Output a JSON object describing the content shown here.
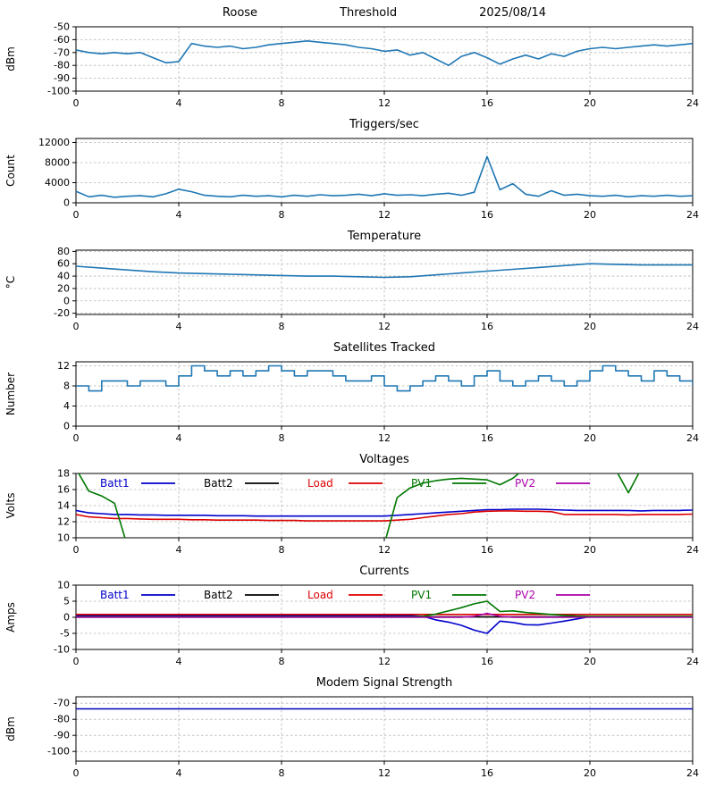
{
  "page_title": "Roose Threshold 2025/08/14",
  "chart_data": [
    {
      "id": "signal-threshold",
      "type": "line",
      "title_parts": [
        "Roose",
        "Threshold",
        "2025/08/14"
      ],
      "ylabel": "dBm",
      "ylim": [
        -100,
        -50
      ],
      "yticks": [
        -100,
        -90,
        -80,
        -70,
        -60,
        -50
      ],
      "xlim": [
        0,
        24
      ],
      "xticks": [
        0,
        4,
        8,
        12,
        16,
        20,
        24
      ],
      "grid": true,
      "series": [
        {
          "name": "signal-dbm",
          "color": "#1f77b4",
          "values": [
            -68,
            -70,
            -71,
            -70,
            -71,
            -70,
            -74,
            -78,
            -77,
            -63,
            -65,
            -66,
            -65,
            -67,
            -66,
            -64,
            -63,
            -62,
            -61,
            -62,
            -63,
            -64,
            -66,
            -67,
            -69,
            -68,
            -72,
            -70,
            -75,
            -80,
            -73,
            -70,
            -74,
            -79,
            -75,
            -72,
            -75,
            -71,
            -73,
            -69,
            -67,
            -66,
            -67,
            -66,
            -65,
            -64,
            -65,
            -64,
            -63
          ]
        }
      ]
    },
    {
      "id": "triggers",
      "type": "line",
      "title": "Triggers/sec",
      "ylabel": "Count",
      "ylim": [
        0,
        12800
      ],
      "yticks": [
        0,
        4000,
        8000,
        12000
      ],
      "xlim": [
        0,
        24
      ],
      "xticks": [
        0,
        4,
        8,
        12,
        16,
        20,
        24
      ],
      "grid": true,
      "series": [
        {
          "name": "trigger-rate",
          "color": "#1f77b4",
          "values": [
            2300,
            1200,
            1500,
            1100,
            1300,
            1400,
            1200,
            1800,
            2700,
            2200,
            1500,
            1300,
            1200,
            1500,
            1300,
            1400,
            1200,
            1500,
            1300,
            1600,
            1400,
            1500,
            1700,
            1400,
            1800,
            1500,
            1600,
            1400,
            1700,
            1900,
            1500,
            2100,
            9200,
            2600,
            3800,
            1700,
            1300,
            2400,
            1500,
            1700,
            1400,
            1300,
            1500,
            1200,
            1400,
            1300,
            1500,
            1300,
            1400
          ]
        }
      ]
    },
    {
      "id": "temperature",
      "type": "line",
      "title": "Temperature",
      "ylabel": "°C",
      "ylim": [
        -22,
        82
      ],
      "yticks": [
        -20,
        0,
        20,
        40,
        60,
        80
      ],
      "xlim": [
        0,
        24
      ],
      "xticks": [
        0,
        4,
        8,
        12,
        16,
        20,
        24
      ],
      "grid": true,
      "series": [
        {
          "name": "temperature-c",
          "color": "#1f77b4",
          "values": [
            56,
            53,
            50,
            47,
            45,
            44,
            43,
            42,
            41,
            40,
            40,
            39,
            38,
            39,
            42,
            45,
            48,
            51,
            54,
            57,
            60,
            59,
            58,
            58,
            58
          ]
        }
      ]
    },
    {
      "id": "satellites",
      "type": "line",
      "title": "Satellites Tracked",
      "ylabel": "Number",
      "ylim": [
        0,
        12.8
      ],
      "yticks": [
        0,
        4,
        8,
        12
      ],
      "xlim": [
        0,
        24
      ],
      "xticks": [
        0,
        4,
        8,
        12,
        16,
        20,
        24
      ],
      "grid": true,
      "series": [
        {
          "name": "satellites-tracked",
          "color": "#1f77b4",
          "step": true,
          "values": [
            8,
            7,
            9,
            9,
            8,
            9,
            9,
            8,
            10,
            12,
            11,
            10,
            11,
            10,
            11,
            12,
            11,
            10,
            11,
            11,
            10,
            9,
            9,
            10,
            8,
            7,
            8,
            9,
            10,
            9,
            8,
            10,
            11,
            9,
            8,
            9,
            10,
            9,
            8,
            9,
            11,
            12,
            11,
            10,
            9,
            11,
            10,
            9,
            8
          ]
        }
      ]
    },
    {
      "id": "voltages",
      "type": "line",
      "title": "Voltages",
      "ylabel": "Volts",
      "ylim": [
        10,
        18
      ],
      "yticks": [
        10,
        12,
        14,
        16,
        18
      ],
      "xlim": [
        0,
        24
      ],
      "xticks": [
        0,
        4,
        8,
        12,
        16,
        20,
        24
      ],
      "grid": true,
      "legend": [
        {
          "label": "Batt1",
          "color": "#0000cc"
        },
        {
          "label": "Batt2",
          "color": "#000000"
        },
        {
          "label": "Load",
          "color": "#dd0000"
        },
        {
          "label": "PV1",
          "color": "#007700"
        },
        {
          "label": "PV2",
          "color": "#aa00aa"
        }
      ],
      "series": [
        {
          "name": "batt1-volts",
          "color": "#0000cc",
          "values": [
            13.4,
            13.1,
            13.0,
            12.9,
            12.9,
            12.85,
            12.85,
            12.8,
            12.8,
            12.8,
            12.8,
            12.75,
            12.75,
            12.75,
            12.7,
            12.7,
            12.7,
            12.7,
            12.7,
            12.7,
            12.7,
            12.7,
            12.7,
            12.7,
            12.7,
            12.8,
            12.9,
            13.0,
            13.1,
            13.2,
            13.3,
            13.4,
            13.5,
            13.5,
            13.55,
            13.55,
            13.55,
            13.5,
            13.45,
            13.4,
            13.4,
            13.4,
            13.4,
            13.4,
            13.35,
            13.4,
            13.4,
            13.4,
            13.45
          ]
        },
        {
          "name": "batt2-volts",
          "color": "#000000",
          "values": []
        },
        {
          "name": "load-volts",
          "color": "#dd0000",
          "values": [
            12.9,
            12.6,
            12.5,
            12.4,
            12.4,
            12.35,
            12.3,
            12.3,
            12.3,
            12.25,
            12.25,
            12.2,
            12.2,
            12.2,
            12.2,
            12.15,
            12.15,
            12.15,
            12.1,
            12.1,
            12.1,
            12.1,
            12.1,
            12.1,
            12.1,
            12.2,
            12.3,
            12.5,
            12.7,
            12.9,
            13.0,
            13.2,
            13.3,
            13.35,
            13.35,
            13.3,
            13.3,
            13.25,
            12.9,
            12.9,
            12.9,
            12.9,
            12.9,
            12.85,
            12.9,
            12.9,
            12.9,
            12.9,
            12.95
          ]
        },
        {
          "name": "pv1-volts",
          "color": "#007700",
          "values": [
            18.6,
            15.8,
            15.2,
            14.3,
            9.0,
            null,
            null,
            null,
            null,
            null,
            null,
            null,
            null,
            null,
            null,
            null,
            null,
            null,
            null,
            null,
            null,
            null,
            null,
            null,
            9.2,
            15.0,
            16.2,
            16.8,
            17.1,
            17.3,
            17.4,
            17.3,
            17.2,
            16.6,
            17.4,
            18.7,
            18.9,
            18.9,
            18.9,
            18.9,
            18.9,
            18.9,
            18.5,
            15.6,
            18.6,
            18.9,
            18.9,
            18.9,
            18.9
          ]
        },
        {
          "name": "pv2-volts",
          "color": "#aa00aa",
          "values": []
        }
      ]
    },
    {
      "id": "currents",
      "type": "line",
      "title": "Currents",
      "ylabel": "Amps",
      "ylim": [
        -10,
        10
      ],
      "yticks": [
        -10,
        -5,
        0,
        5,
        10
      ],
      "xlim": [
        0,
        24
      ],
      "xticks": [
        0,
        4,
        8,
        12,
        16,
        20,
        24
      ],
      "grid": true,
      "legend": [
        {
          "label": "Batt1",
          "color": "#0000cc"
        },
        {
          "label": "Batt2",
          "color": "#000000"
        },
        {
          "label": "Load",
          "color": "#dd0000"
        },
        {
          "label": "PV1",
          "color": "#007700"
        },
        {
          "label": "PV2",
          "color": "#aa00aa"
        }
      ],
      "series": [
        {
          "name": "batt1-amps",
          "color": "#0000cc",
          "values": [
            0.5,
            0.5,
            0.5,
            0.5,
            0.5,
            0.5,
            0.5,
            0.5,
            0.5,
            0.5,
            0.5,
            0.5,
            0.5,
            0.5,
            0.5,
            0.5,
            0.5,
            0.5,
            0.5,
            0.5,
            0.5,
            0.5,
            0.5,
            0.5,
            0.5,
            0.5,
            0.5,
            0.3,
            -0.8,
            -1.5,
            -2.5,
            -4.0,
            -5.0,
            -1.2,
            -1.6,
            -2.3,
            -2.4,
            -1.8,
            -1.2,
            -0.5,
            0.2,
            0.2,
            0.2,
            0.2,
            0.2,
            0.2,
            0.2,
            0.2,
            0.2
          ]
        },
        {
          "name": "batt2-amps",
          "color": "#000000",
          "values": [
            0.1,
            0.1,
            0.1,
            0.1,
            0.1,
            0.1,
            0.1,
            0.1,
            0.1,
            0.1,
            0.1,
            0.1,
            0.1,
            0.1,
            0.1,
            0.1,
            0.1,
            0.1,
            0.1,
            0.1,
            0.1,
            0.1,
            0.1,
            0.1,
            0.1,
            0.1,
            0.1,
            0.1,
            0.1,
            0.1,
            0.1,
            0.1,
            0.1,
            0.1,
            0.1,
            0.1,
            0.1,
            0.1,
            0.1,
            0.1,
            0.1,
            0.1,
            0.1,
            0.1,
            0.1,
            0.1,
            0.1,
            0.1,
            0.1
          ]
        },
        {
          "name": "load-amps",
          "color": "#dd0000",
          "values": [
            0.9,
            0.9,
            0.9,
            0.9,
            0.9,
            0.9,
            0.9,
            0.9,
            0.9,
            0.9,
            0.9,
            0.9,
            0.9,
            0.9,
            0.9,
            0.9,
            0.9,
            0.9,
            0.9,
            0.9,
            0.9,
            0.9,
            0.9,
            0.9,
            0.9,
            0.9,
            0.9,
            0.9,
            0.9,
            0.9,
            0.9,
            0.9,
            0.9,
            0.9,
            0.9,
            0.9,
            0.9,
            0.9,
            0.9,
            0.9,
            0.9,
            0.9,
            0.9,
            0.9,
            0.9,
            0.9,
            0.9,
            0.9,
            0.9
          ]
        },
        {
          "name": "pv1-amps",
          "color": "#007700",
          "values": [
            0.1,
            0.1,
            0.1,
            0.1,
            0.1,
            0.1,
            0.1,
            0.1,
            0.1,
            0.1,
            0.1,
            0.1,
            0.1,
            0.1,
            0.1,
            0.1,
            0.1,
            0.1,
            0.1,
            0.1,
            0.1,
            0.1,
            0.1,
            0.1,
            0.1,
            0.1,
            0.1,
            0.3,
            1.0,
            2.0,
            3.0,
            4.2,
            5.0,
            1.8,
            2.0,
            1.5,
            1.2,
            0.9,
            0.6,
            0.4,
            0.3,
            0.3,
            0.3,
            0.3,
            0.3,
            0.3,
            0.3,
            0.3,
            0.3
          ]
        },
        {
          "name": "pv2-amps",
          "color": "#aa00aa",
          "values": [
            0.0,
            0.0,
            0.0,
            0.0,
            0.0,
            0.0,
            0.0,
            0.0,
            0.0,
            0.0,
            0.0,
            0.0,
            0.0,
            0.0,
            0.0,
            0.0,
            0.0,
            0.0,
            0.0,
            0.0,
            0.0,
            0.0,
            0.0,
            0.0,
            0.0,
            0.0,
            0.0,
            0.0,
            0.0,
            0.0,
            0.0,
            0.3,
            1.2,
            0.3,
            0.0,
            0.0,
            0.0,
            0.0,
            0.0,
            0.0,
            0.0,
            0.0,
            0.0,
            0.0,
            0.0,
            0.0,
            0.0,
            0.0,
            0.0
          ]
        }
      ]
    },
    {
      "id": "modem-signal",
      "type": "line",
      "title": "Modem Signal Strength",
      "ylabel": "dBm",
      "ylim": [
        -106,
        -66
      ],
      "yticks": [
        -100,
        -90,
        -80,
        -70
      ],
      "xlim": [
        0,
        24
      ],
      "xticks": [
        0,
        4,
        8,
        12,
        16,
        20,
        24
      ],
      "grid": true,
      "series": [
        {
          "name": "modem-dbm",
          "color": "#0000bb",
          "values": [
            -73.5,
            -73.5
          ]
        }
      ]
    }
  ]
}
